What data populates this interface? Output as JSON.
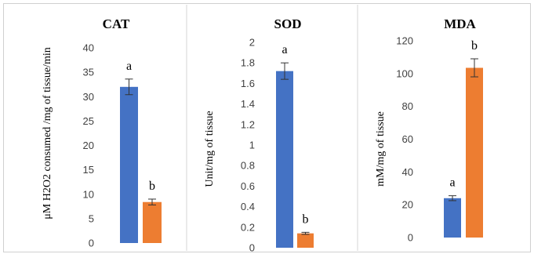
{
  "chart_data": [
    {
      "type": "bar",
      "title": "CAT",
      "ylabel": "μM H2O2 consumed /mg of tissue/min",
      "xlabel": "",
      "ylim": [
        0,
        40
      ],
      "yticks": [
        "0",
        "5",
        "10",
        "15",
        "20",
        "25",
        "30",
        "35",
        "40"
      ],
      "tick_values": [
        0,
        5,
        10,
        15,
        20,
        25,
        30,
        35,
        40
      ],
      "values": [
        32,
        8.4
      ],
      "errors": [
        1.6,
        0.6
      ],
      "annotations": [
        "a",
        "b"
      ],
      "colors": [
        "#4472c4",
        "#ed7d31"
      ],
      "grid": false
    },
    {
      "type": "bar",
      "title": "SOD",
      "ylabel": "Unit/mg  of tissue",
      "xlabel": "",
      "ylim": [
        0,
        2
      ],
      "yticks": [
        "0",
        "0.2",
        "0.4",
        "0.6",
        "0.8",
        "1",
        "1.2",
        "1.4",
        "1.6",
        "1.8",
        "2"
      ],
      "tick_values": [
        0,
        0.2,
        0.4,
        0.6,
        0.8,
        1,
        1.2,
        1.4,
        1.6,
        1.8,
        2
      ],
      "values": [
        1.72,
        0.14
      ],
      "errors": [
        0.08,
        0.01
      ],
      "annotations": [
        "a",
        "b"
      ],
      "colors": [
        "#4472c4",
        "#ed7d31"
      ],
      "grid": false
    },
    {
      "type": "bar",
      "title": "MDA",
      "ylabel": "mM/mg  of tissue",
      "xlabel": "",
      "ylim": [
        0,
        120
      ],
      "yticks": [
        "0",
        "20",
        "40",
        "60",
        "80",
        "100",
        "120"
      ],
      "tick_values": [
        0,
        20,
        40,
        60,
        80,
        100,
        120
      ],
      "values": [
        24,
        103.5
      ],
      "errors": [
        1.5,
        5.5
      ],
      "annotations": [
        "a",
        "b"
      ],
      "colors": [
        "#4472c4",
        "#ed7d31"
      ],
      "grid": false
    }
  ]
}
